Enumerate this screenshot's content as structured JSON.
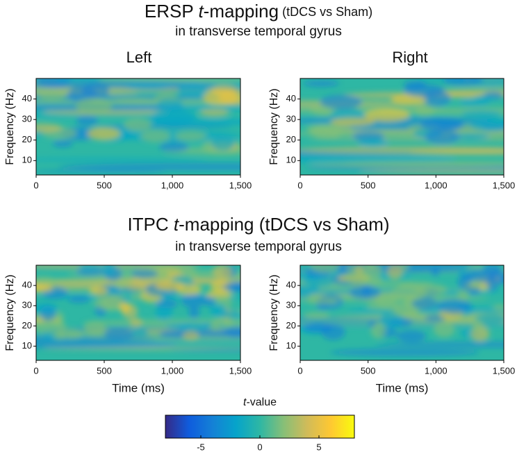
{
  "sections": [
    {
      "title": {
        "lead": "ERSP ",
        "em": "t",
        "main": "-mapping",
        "paren": " (tDCS vs Sham)"
      },
      "subtitle": "in transverse temporal gyrus",
      "column_titles": [
        "Left",
        "Right"
      ]
    },
    {
      "title": {
        "lead": "ITPC ",
        "em": "t",
        "main": "-mapping (tDCS vs Sham)"
      },
      "subtitle": "in transverse temporal gyrus"
    }
  ],
  "chart_data": [
    {
      "type": "heatmap",
      "ylabel": "Frequency (Hz)",
      "xlim": [
        0,
        1500
      ],
      "xticks": [
        0,
        500,
        {
          "value": 1000,
          "label": "1,000"
        },
        {
          "value": 1500,
          "label": "1,500"
        }
      ],
      "ylim": [
        3,
        50
      ],
      "yticks": [
        10,
        20,
        30,
        40
      ]
    },
    {
      "type": "heatmap",
      "ylabel": "Frequency (Hz)",
      "xlim": [
        0,
        1500
      ],
      "xticks": [
        0,
        500,
        {
          "value": 1000,
          "label": "1,000"
        },
        {
          "value": 1500,
          "label": "1,500"
        }
      ],
      "ylim": [
        3,
        50
      ],
      "yticks": [
        10,
        20,
        30,
        40
      ]
    },
    {
      "type": "heatmap",
      "ylabel": "Frequency (Hz)",
      "xlabel": "Time (ms)",
      "xlim": [
        0,
        1500
      ],
      "xticks": [
        0,
        500,
        {
          "value": 1000,
          "label": "1,000"
        },
        {
          "value": 1500,
          "label": "1,500"
        }
      ],
      "ylim": [
        3,
        50
      ],
      "yticks": [
        10,
        20,
        30,
        40
      ]
    },
    {
      "type": "heatmap",
      "ylabel": "Frequency (Hz)",
      "xlabel": "Time (ms)",
      "xlim": [
        0,
        1500
      ],
      "xticks": [
        0,
        500,
        {
          "value": 1000,
          "label": "1,000"
        },
        {
          "value": 1500,
          "label": "1,500"
        }
      ],
      "ylim": [
        3,
        50
      ],
      "yticks": [
        10,
        20,
        30,
        40
      ]
    }
  ],
  "colorbar": {
    "label_em": "t",
    "label": "-value",
    "lim": [
      -8,
      8
    ],
    "ticks": [
      -5,
      0,
      5
    ],
    "colors": [
      "#352a87",
      "#0f5cdd",
      "#1481d6",
      "#06a4ca",
      "#2eb7a4",
      "#87bf77",
      "#d1bb59",
      "#fec832",
      "#f9fb0e"
    ]
  }
}
